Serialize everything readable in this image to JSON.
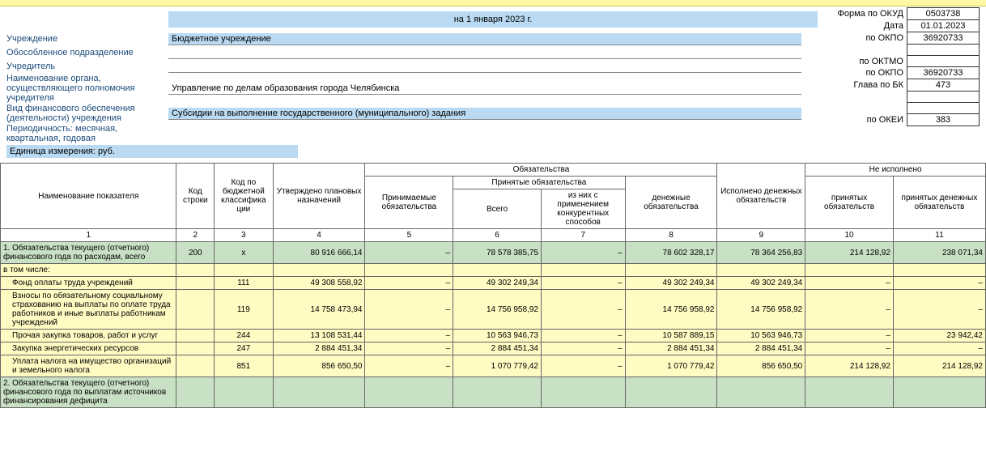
{
  "header": {
    "as_of": "на 1 января 2023 г.",
    "rows": [
      {
        "label": "Учреждение",
        "value": "Бюджетное учреждение",
        "bg": true
      },
      {
        "label": "Обособленное подразделение",
        "value": "",
        "bg": false
      },
      {
        "label": "Учредитель",
        "value": "",
        "bg": false
      },
      {
        "label": "Наименование органа, осуществляющего полномочия учредителя",
        "value": "Управление по делам образования города Челябинска",
        "bg": false
      },
      {
        "label": "Вид финансового обеспечения (деятельности) учреждения",
        "value": "Субсидии на выполнение государственного (муниципального) задания",
        "bg": true
      },
      {
        "label": "Периодичность: месячная, квартальная, годовая",
        "value": null,
        "bg": false
      }
    ],
    "unit": "Единица измерения: руб."
  },
  "codes": [
    {
      "label": "Форма по ОКУД",
      "value": "0503738"
    },
    {
      "label": "Дата",
      "value": "01.01.2023"
    },
    {
      "label": "по ОКПО",
      "value": "36920733"
    },
    {
      "label": "",
      "value": ""
    },
    {
      "label": "по ОКТМО",
      "value": ""
    },
    {
      "label": "по ОКПО",
      "value": "36920733"
    },
    {
      "label": "Глава по БК",
      "value": "473"
    },
    {
      "label": "",
      "value": ""
    },
    {
      "label": "",
      "value": ""
    },
    {
      "label": "по ОКЕИ",
      "value": "383"
    }
  ],
  "table": {
    "head": {
      "c1": "Наименование показателя",
      "c2": "Код строки",
      "c3": "Код по бюджетной классифика ции",
      "c4": "Утверждено плановых назначений",
      "g_obl": "Обязательства",
      "c5": "Принимаемые обязательства",
      "g_prin": "Принятые обязательства",
      "c6": "Всего",
      "c7": "из них с применением конкурентных способов",
      "c8": "денежные обязательства",
      "c9": "Исполнено денежных обязательств",
      "g_neisp": "Не исполнено",
      "c10": "принятых обязательств",
      "c11": "принятых денежных обязательств"
    },
    "numrow": [
      "1",
      "2",
      "3",
      "4",
      "5",
      "6",
      "7",
      "8",
      "9",
      "10",
      "11"
    ],
    "rows": [
      {
        "cls": "green",
        "name": "1. Обязательства текущего (отчетного) финансового года по расходам, всего",
        "code": "200",
        "kbk": "х",
        "c4": "80 916 666,14",
        "c5": "–",
        "c6": "78 578 385,75",
        "c7": "–",
        "c8": "78 602 328,17",
        "c9": "78 364 256,83",
        "c10": "214 128,92",
        "c11": "238 071,34"
      },
      {
        "cls": "yellow subhead",
        "name": "в том числе:",
        "code": "",
        "kbk": "",
        "c4": "",
        "c5": "",
        "c6": "",
        "c7": "",
        "c8": "",
        "c9": "",
        "c10": "",
        "c11": ""
      },
      {
        "cls": "yellow",
        "name": "Фонд оплаты труда учреждений",
        "indent": true,
        "code": "",
        "kbk": "111",
        "c4": "49 308 558,92",
        "c5": "–",
        "c6": "49 302 249,34",
        "c7": "–",
        "c8": "49 302 249,34",
        "c9": "49 302 249,34",
        "c10": "–",
        "c11": "–"
      },
      {
        "cls": "yellow",
        "name": "Взносы по обязательному социальному страхованию на выплаты по оплате труда работников и иные выплаты работникам учреждений",
        "indent": true,
        "code": "",
        "kbk": "119",
        "c4": "14 758 473,94",
        "c5": "–",
        "c6": "14 756 958,92",
        "c7": "–",
        "c8": "14 756 958,92",
        "c9": "14 756 958,92",
        "c10": "–",
        "c11": "–"
      },
      {
        "cls": "yellow",
        "name": "Прочая закупка товаров, работ и услуг",
        "indent": true,
        "code": "",
        "kbk": "244",
        "c4": "13 108 531,44",
        "c5": "–",
        "c6": "10 563 946,73",
        "c7": "–",
        "c8": "10 587 889,15",
        "c9": "10 563 946,73",
        "c10": "–",
        "c11": "23 942,42"
      },
      {
        "cls": "yellow",
        "name": "Закупка энергетических ресурсов",
        "indent": true,
        "code": "",
        "kbk": "247",
        "c4": "2 884 451,34",
        "c5": "–",
        "c6": "2 884 451,34",
        "c7": "–",
        "c8": "2 884 451,34",
        "c9": "2 884 451,34",
        "c10": "–",
        "c11": "–"
      },
      {
        "cls": "yellow",
        "name": "Уплата налога на имущество организаций и земельного налога",
        "indent": true,
        "code": "",
        "kbk": "851",
        "c4": "856 650,50",
        "c5": "–",
        "c6": "1 070 779,42",
        "c7": "–",
        "c8": "1 070 779,42",
        "c9": "856 650,50",
        "c10": "214 128,92",
        "c11": "214 128,92"
      },
      {
        "cls": "green",
        "name": "2. Обязательства текущего (отчетного) финансового года по выплатам источников финансирования дефицита",
        "code": "",
        "kbk": "",
        "c4": "",
        "c5": "",
        "c6": "",
        "c7": "",
        "c8": "",
        "c9": "",
        "c10": "",
        "c11": ""
      }
    ]
  },
  "colors": {
    "green": "#c8e0c3",
    "yellow": "#fffbc2",
    "blue": "#b9daf2"
  }
}
